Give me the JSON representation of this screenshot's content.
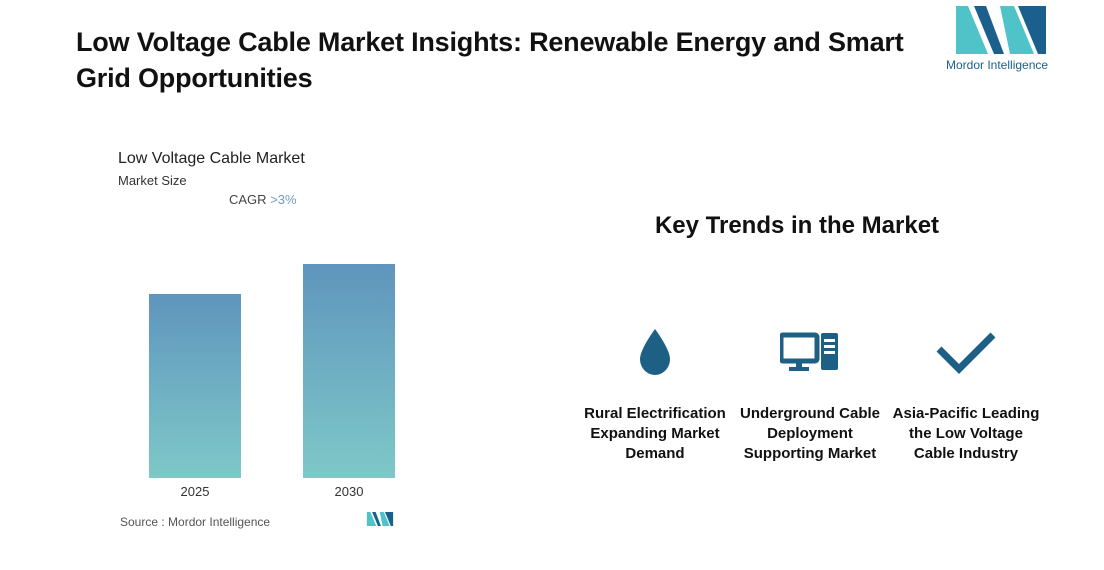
{
  "header": {
    "title": "Low Voltage Cable Market Insights: Renewable Energy and Smart Grid Opportunities",
    "logo_text": "Mordor Intelligence"
  },
  "chart_panel": {
    "title": "Low Voltage Cable Market",
    "subtitle": "Market Size",
    "cagr_label": "CAGR",
    "cagr_value": ">3%",
    "source": "Source :  Mordor Intelligence"
  },
  "chart_data": {
    "type": "bar",
    "title": "Low Voltage Cable Market",
    "subtitle": "Market Size",
    "categories": [
      "2025",
      "2030"
    ],
    "values": [
      0.86,
      1.0
    ],
    "value_note": "relative (2030 = 1.0); axis unlabeled",
    "ylim": [
      0,
      1.0
    ],
    "grid": false,
    "bar_gradient": [
      "#5f95bd",
      "#7ec8c8"
    ]
  },
  "trends": {
    "title": "Key Trends in the Market",
    "items": [
      {
        "label": "Rural Electrification Expanding Market Demand",
        "icon": "water-drop-icon"
      },
      {
        "label": "Underground Cable Deployment Supporting Market",
        "icon": "computer-icon"
      },
      {
        "label": "Asia-Pacific Leading the Low Voltage Cable Industry",
        "icon": "checkmark-icon"
      }
    ]
  },
  "colors": {
    "icon": "#1e5f86",
    "logo_dark": "#1b5f8c",
    "logo_light": "#4fc3c7"
  }
}
